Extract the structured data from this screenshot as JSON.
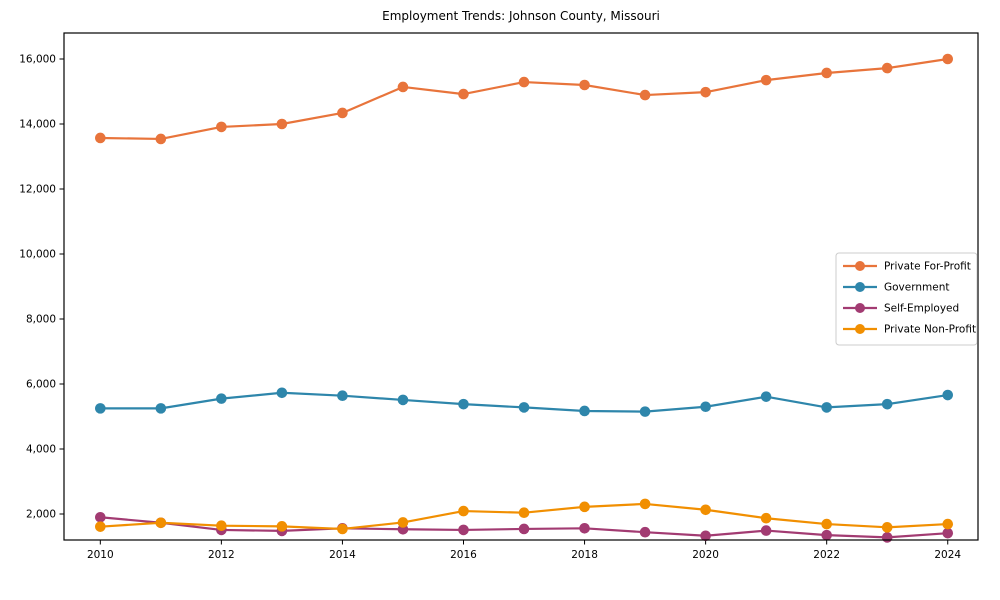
{
  "chart_data": {
    "type": "line",
    "title": "Employment Trends: Johnson County, Missouri",
    "xlabel": "",
    "ylabel": "",
    "x": [
      2010,
      2011,
      2012,
      2013,
      2014,
      2015,
      2016,
      2017,
      2018,
      2019,
      2020,
      2021,
      2022,
      2023,
      2024
    ],
    "series": [
      {
        "name": "Private For-Profit",
        "color": "#E8743B",
        "values": [
          13570,
          13540,
          13910,
          14000,
          14340,
          15140,
          14920,
          15290,
          15200,
          14890,
          14980,
          15350,
          15570,
          15720,
          16000
        ]
      },
      {
        "name": "Government",
        "color": "#2E86AB",
        "values": [
          5250,
          5250,
          5550,
          5730,
          5640,
          5510,
          5380,
          5280,
          5170,
          5150,
          5300,
          5610,
          5280,
          5380,
          5660
        ]
      },
      {
        "name": "Self-Employed",
        "color": "#A23B72",
        "values": [
          1900,
          1730,
          1510,
          1480,
          1560,
          1530,
          1510,
          1540,
          1560,
          1440,
          1330,
          1490,
          1350,
          1280,
          1410
        ]
      },
      {
        "name": "Private Non-Profit",
        "color": "#F18F01",
        "values": [
          1610,
          1730,
          1640,
          1620,
          1540,
          1740,
          2090,
          2040,
          2220,
          2310,
          2130,
          1870,
          1690,
          1590,
          1690
        ]
      }
    ],
    "xticks": [
      2010,
      2012,
      2014,
      2016,
      2018,
      2020,
      2022,
      2024
    ],
    "xtick_labels": [
      "2010",
      "2012",
      "2014",
      "2016",
      "2018",
      "2020",
      "2022",
      "2024"
    ],
    "yticks": [
      2000,
      4000,
      6000,
      8000,
      10000,
      12000,
      14000,
      16000
    ],
    "ytick_labels": [
      "2,000",
      "4,000",
      "6,000",
      "8,000",
      "10,000",
      "12,000",
      "14,000",
      "16,000"
    ],
    "xlim": [
      2009.4,
      2024.5
    ],
    "ylim": [
      1200,
      16800
    ],
    "grid": false,
    "legend": {
      "position": "center-right",
      "border_color": "#cccccc",
      "background": "#ffffff",
      "labels": [
        "Private For-Profit",
        "Government",
        "Self-Employed",
        "Private Non-Profit"
      ]
    },
    "plot_border_color": "#000000",
    "background_color": "#ffffff"
  }
}
